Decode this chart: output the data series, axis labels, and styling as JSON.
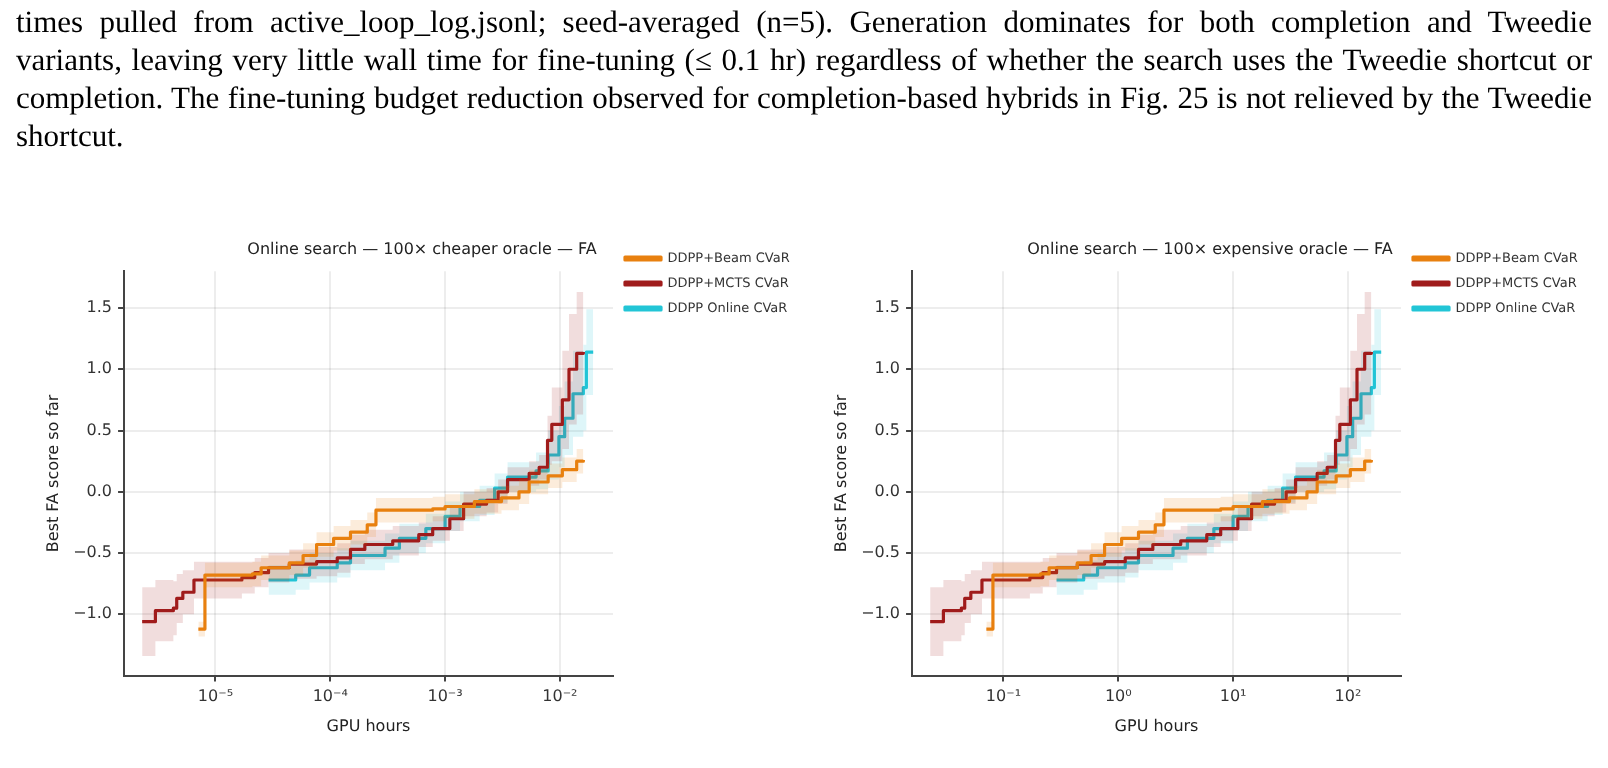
{
  "chart_data": [
    {
      "type": "step",
      "title": "Online search — 100× cheaper oracle — FA",
      "xlabel": "GPU hours",
      "ylabel": "Best FA score so far",
      "log": "x",
      "xlim": [
        1.6e-06,
        0.029
      ],
      "xticks": [
        {
          "value": 1e-05,
          "label": "10⁻⁵"
        },
        {
          "value": 0.0001,
          "label": "10⁻⁴"
        },
        {
          "value": 0.001,
          "label": "10⁻³"
        },
        {
          "value": 0.01,
          "label": "10⁻²"
        }
      ],
      "ylim": [
        -1.5,
        1.8
      ],
      "yticks": [
        {
          "value": -1,
          "label": "−1.0"
        },
        {
          "value": -0.5,
          "label": "−0.5"
        },
        {
          "value": 0,
          "label": "0.0"
        },
        {
          "value": 0.5,
          "label": "0.5"
        },
        {
          "value": 1,
          "label": "1.0"
        },
        {
          "value": 1.5,
          "label": "1.5"
        }
      ],
      "grid": true,
      "legend": "right",
      "annotations": [
        "times pulled from active_loop_log.jsonl; seed-averaged (n=5). Generation dominates for both completion and Tweedie variants, leaving very little wall time for fine-tuning (≤ 0.1 hr) regardless of whether the search uses the Tweedie shortcut or completion. The fine-tuning budget reduction observed for completion-based hybrids in Fig. 25 is not relieved by the Tweedie shortcut."
      ],
      "series": [
        {
          "name": "DDPP+Beam CVaR",
          "color": "#e8800f",
          "x": [
            7.1e-06,
            8.1e-06,
            2.1e-05,
            2.5e-05,
            4.4e-05,
            5.8e-05,
            7.6e-05,
            0.000107,
            0.00015,
            0.00021,
            0.00025,
            0.00078,
            0.001,
            0.0018,
            0.0031,
            0.0044,
            0.0054,
            0.0079,
            0.0105,
            0.014,
            0.016
          ],
          "values": [
            -1.12,
            -0.68,
            -0.67,
            -0.62,
            -0.58,
            -0.52,
            -0.43,
            -0.38,
            -0.33,
            -0.27,
            -0.15,
            -0.14,
            -0.12,
            -0.08,
            -0.05,
            0.0,
            0.08,
            0.13,
            0.18,
            0.25,
            0.26
          ],
          "lower": [
            -1.18,
            -0.78,
            -0.77,
            -0.72,
            -0.68,
            -0.62,
            -0.53,
            -0.48,
            -0.43,
            -0.37,
            -0.25,
            -0.24,
            -0.22,
            -0.18,
            -0.15,
            -0.1,
            -0.02,
            0.03,
            0.08,
            0.15,
            0.16
          ],
          "upper": [
            -1.06,
            -0.58,
            -0.57,
            -0.52,
            -0.48,
            -0.42,
            -0.33,
            -0.28,
            -0.23,
            -0.17,
            -0.05,
            -0.04,
            -0.02,
            0.02,
            0.05,
            0.1,
            0.18,
            0.23,
            0.28,
            0.35,
            0.36
          ]
        },
        {
          "name": "DDPP+MCTS CVaR",
          "color": "#a01c1c",
          "x": [
            2.3e-06,
            3e-06,
            4.3e-06,
            4.6e-06,
            5.2e-06,
            6.5e-06,
            1.7e-05,
            2.2e-05,
            2.9e-05,
            4.4e-05,
            7.6e-05,
            0.000115,
            0.00015,
            0.0002,
            0.00035,
            0.00059,
            0.00078,
            0.0011,
            0.00145,
            0.0023,
            0.0029,
            0.0035,
            0.0054,
            0.0066,
            0.0078,
            0.0085,
            0.0105,
            0.012,
            0.014,
            0.016
          ],
          "values": [
            -1.06,
            -0.97,
            -0.95,
            -0.87,
            -0.82,
            -0.72,
            -0.7,
            -0.66,
            -0.62,
            -0.59,
            -0.57,
            -0.54,
            -0.47,
            -0.43,
            -0.4,
            -0.35,
            -0.3,
            -0.22,
            -0.1,
            -0.07,
            0.0,
            0.1,
            0.15,
            0.2,
            0.42,
            0.55,
            0.75,
            1.0,
            1.13,
            1.14
          ],
          "lower": [
            -1.34,
            -1.22,
            -1.17,
            -1.07,
            -1.0,
            -0.87,
            -0.83,
            -0.78,
            -0.74,
            -0.71,
            -0.69,
            -0.66,
            -0.59,
            -0.55,
            -0.52,
            -0.45,
            -0.4,
            -0.32,
            -0.2,
            -0.17,
            -0.1,
            0.0,
            0.05,
            0.1,
            0.22,
            0.25,
            0.35,
            0.55,
            0.63,
            0.64
          ],
          "upper": [
            -0.78,
            -0.72,
            -0.73,
            -0.67,
            -0.64,
            -0.57,
            -0.57,
            -0.54,
            -0.5,
            -0.47,
            -0.45,
            -0.42,
            -0.35,
            -0.31,
            -0.28,
            -0.25,
            -0.2,
            -0.12,
            0.0,
            0.03,
            0.1,
            0.2,
            0.25,
            0.3,
            0.62,
            0.85,
            1.15,
            1.45,
            1.63,
            1.64
          ]
        },
        {
          "name": "DDPP Online CVaR",
          "color": "#22c5d6",
          "x": [
            2.9e-05,
            5e-05,
            6.6e-05,
            0.000115,
            0.00015,
            0.0003,
            0.0004,
            0.00068,
            0.001,
            0.00135,
            0.002,
            0.0027,
            0.0035,
            0.0062,
            0.0079,
            0.0098,
            0.011,
            0.013,
            0.016,
            0.017,
            0.0195
          ],
          "values": [
            -0.72,
            -0.68,
            -0.62,
            -0.58,
            -0.52,
            -0.46,
            -0.38,
            -0.3,
            -0.2,
            -0.12,
            -0.07,
            0.03,
            0.12,
            0.17,
            0.3,
            0.45,
            0.6,
            0.8,
            0.85,
            1.14,
            1.14
          ],
          "lower": [
            -0.84,
            -0.8,
            -0.74,
            -0.7,
            -0.64,
            -0.58,
            -0.5,
            -0.42,
            -0.32,
            -0.24,
            -0.19,
            -0.09,
            0.0,
            0.02,
            0.1,
            0.2,
            0.3,
            0.45,
            0.5,
            0.79,
            0.79
          ],
          "upper": [
            -0.6,
            -0.56,
            -0.5,
            -0.46,
            -0.4,
            -0.34,
            -0.26,
            -0.18,
            -0.08,
            0.0,
            0.05,
            0.15,
            0.24,
            0.32,
            0.5,
            0.7,
            0.9,
            1.15,
            1.2,
            1.49,
            1.49
          ]
        }
      ]
    },
    {
      "type": "step",
      "title": "Online search — 100× expensive oracle — FA",
      "xlabel": "GPU hours",
      "ylabel": "Best FA score so far",
      "log": "x",
      "xlim": [
        0.016,
        290
      ],
      "xticks": [
        {
          "value": 0.1,
          "label": "10⁻¹"
        },
        {
          "value": 1,
          "label": "10⁰"
        },
        {
          "value": 10,
          "label": "10¹"
        },
        {
          "value": 100,
          "label": "10²"
        }
      ],
      "ylim": [
        -1.5,
        1.8
      ],
      "yticks": [
        {
          "value": -1,
          "label": "−1.0"
        },
        {
          "value": -0.5,
          "label": "−0.5"
        },
        {
          "value": 0,
          "label": "0.0"
        },
        {
          "value": 0.5,
          "label": "0.5"
        },
        {
          "value": 1,
          "label": "1.0"
        },
        {
          "value": 1.5,
          "label": "1.5"
        }
      ],
      "grid": true,
      "legend": "right",
      "series": [
        {
          "name": "DDPP+Beam CVaR",
          "color": "#e8800f",
          "x": [
            0.071,
            0.081,
            0.21,
            0.25,
            0.44,
            0.58,
            0.76,
            1.07,
            1.5,
            2.1,
            2.5,
            7.8,
            10,
            18,
            31,
            44,
            54,
            79,
            105,
            140,
            160
          ],
          "values": [
            -1.12,
            -0.68,
            -0.67,
            -0.62,
            -0.58,
            -0.52,
            -0.43,
            -0.38,
            -0.33,
            -0.27,
            -0.15,
            -0.14,
            -0.12,
            -0.08,
            -0.05,
            0.0,
            0.08,
            0.13,
            0.18,
            0.25,
            0.26
          ],
          "lower": [
            -1.18,
            -0.78,
            -0.77,
            -0.72,
            -0.68,
            -0.62,
            -0.53,
            -0.48,
            -0.43,
            -0.37,
            -0.25,
            -0.24,
            -0.22,
            -0.18,
            -0.15,
            -0.1,
            -0.02,
            0.03,
            0.08,
            0.15,
            0.16
          ],
          "upper": [
            -1.06,
            -0.58,
            -0.57,
            -0.52,
            -0.48,
            -0.42,
            -0.33,
            -0.28,
            -0.23,
            -0.17,
            -0.05,
            -0.04,
            -0.02,
            0.02,
            0.05,
            0.1,
            0.18,
            0.23,
            0.28,
            0.35,
            0.36
          ]
        },
        {
          "name": "DDPP+MCTS CVaR",
          "color": "#a01c1c",
          "x": [
            0.023,
            0.03,
            0.043,
            0.046,
            0.052,
            0.065,
            0.17,
            0.22,
            0.29,
            0.44,
            0.76,
            1.15,
            1.5,
            2.0,
            3.5,
            5.9,
            7.8,
            11,
            14.5,
            23,
            29,
            35,
            54,
            66,
            78,
            85,
            105,
            120,
            140,
            160
          ],
          "values": [
            -1.06,
            -0.97,
            -0.95,
            -0.87,
            -0.82,
            -0.72,
            -0.7,
            -0.66,
            -0.62,
            -0.59,
            -0.57,
            -0.54,
            -0.47,
            -0.43,
            -0.4,
            -0.35,
            -0.3,
            -0.22,
            -0.1,
            -0.07,
            0.0,
            0.1,
            0.15,
            0.2,
            0.42,
            0.55,
            0.75,
            1.0,
            1.13,
            1.14
          ],
          "lower": [
            -1.34,
            -1.22,
            -1.17,
            -1.07,
            -1.0,
            -0.87,
            -0.83,
            -0.78,
            -0.74,
            -0.71,
            -0.69,
            -0.66,
            -0.59,
            -0.55,
            -0.52,
            -0.45,
            -0.4,
            -0.32,
            -0.2,
            -0.17,
            -0.1,
            0.0,
            0.05,
            0.1,
            0.22,
            0.25,
            0.35,
            0.55,
            0.63,
            0.64
          ],
          "upper": [
            -0.78,
            -0.72,
            -0.73,
            -0.67,
            -0.64,
            -0.57,
            -0.57,
            -0.54,
            -0.5,
            -0.47,
            -0.45,
            -0.42,
            -0.35,
            -0.31,
            -0.28,
            -0.25,
            -0.2,
            -0.12,
            0.0,
            0.03,
            0.1,
            0.2,
            0.25,
            0.3,
            0.62,
            0.85,
            1.15,
            1.45,
            1.63,
            1.64
          ]
        },
        {
          "name": "DDPP Online CVaR",
          "color": "#22c5d6",
          "x": [
            0.29,
            0.5,
            0.66,
            1.15,
            1.5,
            3.0,
            4.0,
            6.8,
            10,
            13.5,
            20,
            27,
            35,
            62,
            79,
            98,
            110,
            130,
            160,
            170,
            195
          ],
          "values": [
            -0.72,
            -0.68,
            -0.62,
            -0.58,
            -0.52,
            -0.46,
            -0.38,
            -0.3,
            -0.2,
            -0.12,
            -0.07,
            0.03,
            0.12,
            0.17,
            0.3,
            0.45,
            0.6,
            0.8,
            0.85,
            1.14,
            1.14
          ],
          "lower": [
            -0.84,
            -0.8,
            -0.74,
            -0.7,
            -0.64,
            -0.58,
            -0.5,
            -0.42,
            -0.32,
            -0.24,
            -0.19,
            -0.09,
            0.0,
            0.02,
            0.1,
            0.2,
            0.3,
            0.45,
            0.5,
            0.79,
            0.79
          ],
          "upper": [
            -0.6,
            -0.56,
            -0.5,
            -0.46,
            -0.4,
            -0.34,
            -0.26,
            -0.18,
            -0.08,
            0.0,
            0.05,
            0.15,
            0.24,
            0.32,
            0.5,
            0.7,
            0.9,
            1.15,
            1.2,
            1.49,
            1.49
          ]
        }
      ]
    }
  ]
}
